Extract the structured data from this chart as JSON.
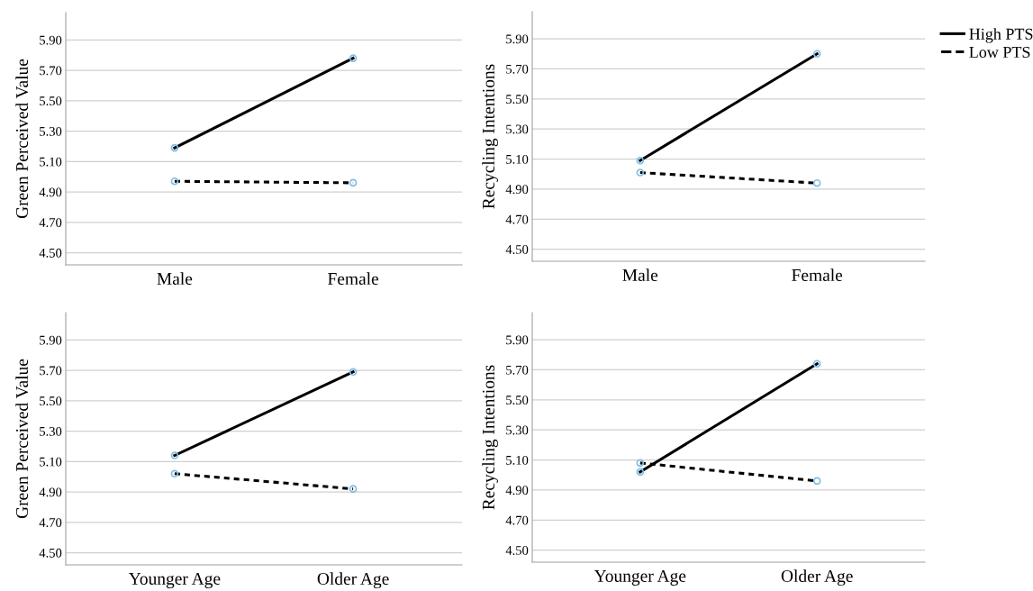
{
  "chart_data": [
    {
      "type": "line",
      "ylabel": "Green Perceived Value",
      "categories": [
        "Male",
        "Female"
      ],
      "ylim": [
        4.42,
        6.08
      ],
      "yticks": [
        {
          "value": 4.5,
          "label": "4.50"
        },
        {
          "value": 4.7,
          "label": "4.70"
        },
        {
          "value": 4.9,
          "label": "4.90"
        },
        {
          "value": 5.1,
          "label": "5.10"
        },
        {
          "value": 5.3,
          "label": "5.30"
        },
        {
          "value": 5.5,
          "label": "5.50"
        },
        {
          "value": 5.7,
          "label": "5.70"
        },
        {
          "value": 5.9,
          "label": "5.90"
        }
      ],
      "grid": "y",
      "marker": "circle",
      "legend": false,
      "series": [
        {
          "color": "#000000",
          "line_style": "solid",
          "values": [
            5.19,
            5.78
          ]
        },
        {
          "color": "#000000",
          "line_style": "dotted",
          "values": [
            4.97,
            4.96
          ]
        }
      ]
    },
    {
      "type": "line",
      "ylabel": "Recycling Intentions",
      "categories": [
        "Male",
        "Female"
      ],
      "ylim": [
        4.42,
        6.08
      ],
      "yticks": [
        {
          "value": 4.5,
          "label": "4.50"
        },
        {
          "value": 4.7,
          "label": "4.70"
        },
        {
          "value": 4.9,
          "label": "4.90"
        },
        {
          "value": 5.1,
          "label": "5.10"
        },
        {
          "value": 5.3,
          "label": "5.30"
        },
        {
          "value": 5.5,
          "label": "5.50"
        },
        {
          "value": 5.7,
          "label": "5.70"
        },
        {
          "value": 5.9,
          "label": "5.90"
        }
      ],
      "grid": "y",
      "marker": "circle",
      "legend": "top right",
      "series": [
        {
          "name": "High PTS",
          "color": "#000000",
          "line_style": "solid",
          "values": [
            5.09,
            5.8
          ]
        },
        {
          "name": "Low PTS",
          "color": "#000000",
          "line_style": "dotted",
          "values": [
            5.01,
            4.94
          ]
        }
      ]
    },
    {
      "type": "line",
      "ylabel": "Green Perceived Value",
      "categories": [
        "Younger Age",
        "Older Age"
      ],
      "ylim": [
        4.42,
        6.08
      ],
      "yticks": [
        {
          "value": 4.5,
          "label": "4.50"
        },
        {
          "value": 4.7,
          "label": "4.70"
        },
        {
          "value": 4.9,
          "label": "4.90"
        },
        {
          "value": 5.1,
          "label": "5.10"
        },
        {
          "value": 5.3,
          "label": "5.30"
        },
        {
          "value": 5.5,
          "label": "5.50"
        },
        {
          "value": 5.7,
          "label": "5.70"
        },
        {
          "value": 5.9,
          "label": "5.90"
        }
      ],
      "grid": "y",
      "marker": "circle",
      "legend": false,
      "series": [
        {
          "color": "#000000",
          "line_style": "solid",
          "values": [
            5.14,
            5.69
          ]
        },
        {
          "color": "#000000",
          "line_style": "dotted",
          "values": [
            5.02,
            4.92
          ]
        }
      ]
    },
    {
      "type": "line",
      "ylabel": "Recycling Intentions",
      "categories": [
        "Younger Age",
        "Older Age"
      ],
      "ylim": [
        4.42,
        6.08
      ],
      "yticks": [
        {
          "value": 4.5,
          "label": "4.50"
        },
        {
          "value": 4.7,
          "label": "4.70"
        },
        {
          "value": 4.9,
          "label": "4.90"
        },
        {
          "value": 5.1,
          "label": "5.10"
        },
        {
          "value": 5.3,
          "label": "5.30"
        },
        {
          "value": 5.5,
          "label": "5.50"
        },
        {
          "value": 5.7,
          "label": "5.70"
        },
        {
          "value": 5.9,
          "label": "5.90"
        }
      ],
      "grid": "y",
      "marker": "circle",
      "legend": false,
      "series": [
        {
          "color": "#000000",
          "line_style": "solid",
          "values": [
            5.02,
            5.74
          ]
        },
        {
          "color": "#000000",
          "line_style": "dotted",
          "values": [
            5.08,
            4.96
          ]
        }
      ]
    }
  ]
}
